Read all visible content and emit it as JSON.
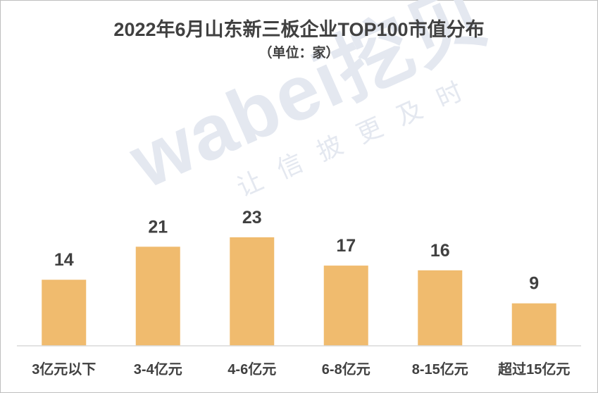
{
  "watermark": {
    "brand": "wabei挖贝",
    "slogan": "让信披更及时"
  },
  "chart_data": {
    "type": "bar",
    "title": "2022年6月山东新三板企业TOP100市值分布",
    "subtitle": "（单位：家）",
    "categories": [
      "3亿元以下",
      "3-4亿元",
      "4-6亿元",
      "6-8亿元",
      "8-15亿元",
      "超过15亿元"
    ],
    "values": [
      14,
      21,
      23,
      17,
      16,
      9
    ],
    "ylim": [
      0,
      25
    ],
    "bar_color": "#f0bb6e",
    "axis_color": "#d9d9d9",
    "text_color": "#404040",
    "grid": false,
    "legend": "none"
  }
}
